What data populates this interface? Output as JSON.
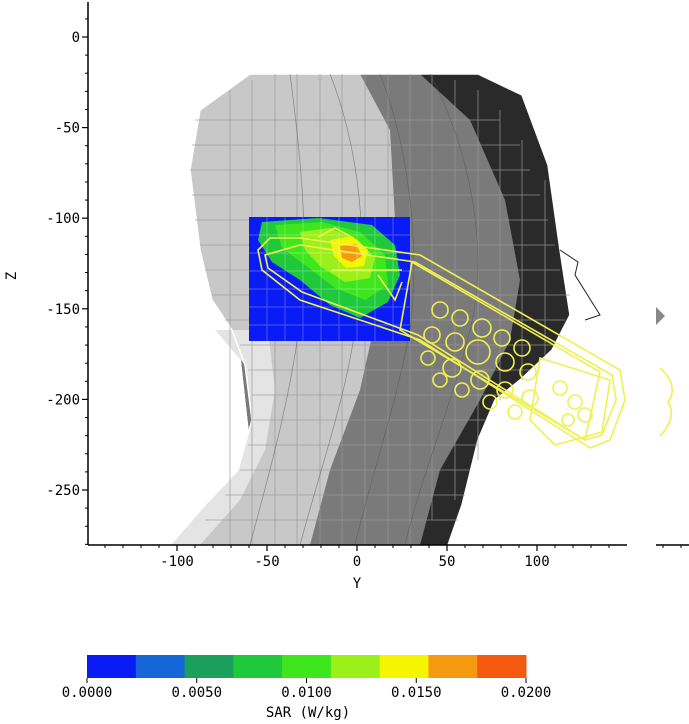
{
  "chart_data": {
    "type": "heatmap",
    "xlabel": "Y",
    "ylabel": "Z",
    "xlim": [
      -148,
      190
    ],
    "ylim": [
      -281,
      20
    ],
    "x_ticks": [
      -100,
      -50,
      0,
      50,
      100
    ],
    "y_ticks": [
      0,
      -50,
      -100,
      -150,
      -200,
      -250
    ],
    "x_tick_labels": [
      "-100",
      "-50",
      "0",
      "50",
      "100"
    ],
    "y_tick_labels": [
      "0",
      "-50",
      "-100",
      "-150",
      "-200",
      "-250"
    ],
    "heatmap_region": {
      "y_range": [
        -58,
        30
      ],
      "z_range": [
        -168,
        -100
      ]
    },
    "colorbar": {
      "label": "SAR (W/kg)",
      "range": [
        0,
        0.02
      ],
      "tick_labels": [
        "0.0000",
        "0.0050",
        "0.0100",
        "0.0150",
        "0.0200"
      ],
      "colors": [
        "#0a1cf5",
        "#1566d9",
        "#1aa05a",
        "#20c93c",
        "#3ee61e",
        "#9cf01a",
        "#f5f500",
        "#f59a10",
        "#f55a10"
      ]
    }
  }
}
